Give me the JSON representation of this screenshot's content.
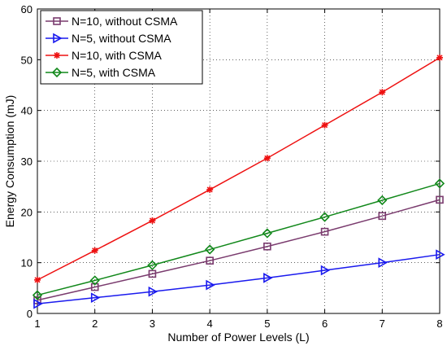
{
  "chart_data": {
    "type": "line",
    "xlabel": "Number of Power Levels (L)",
    "ylabel": "Energy Consumption (mJ)",
    "xlim": [
      1,
      8
    ],
    "ylim": [
      0,
      60
    ],
    "x": [
      1,
      2,
      3,
      4,
      5,
      6,
      7,
      8
    ],
    "xticks": [
      "1",
      "2",
      "3",
      "4",
      "5",
      "6",
      "7",
      "8"
    ],
    "yticks": [
      "0",
      "10",
      "20",
      "30",
      "40",
      "50",
      "60"
    ],
    "grid": true,
    "legend_position": "top-left",
    "series": [
      {
        "name": "N=10, without CSMA",
        "color": "#7a3b6e",
        "marker": "square",
        "values": [
          2.6,
          5.2,
          7.8,
          10.4,
          13.2,
          16.1,
          19.2,
          22.4
        ]
      },
      {
        "name": "N=5, without CSMA",
        "color": "#1a1aee",
        "marker": "triangle-right",
        "values": [
          1.9,
          3.1,
          4.3,
          5.6,
          7.0,
          8.5,
          10.0,
          11.6
        ]
      },
      {
        "name": "N=10, with CSMA",
        "color": "#ee1111",
        "marker": "star",
        "values": [
          6.6,
          12.4,
          18.3,
          24.4,
          30.6,
          37.1,
          43.6,
          50.4
        ]
      },
      {
        "name": "N=5, with CSMA",
        "color": "#11881a",
        "marker": "diamond",
        "values": [
          3.6,
          6.5,
          9.5,
          12.6,
          15.8,
          19.0,
          22.3,
          25.6
        ]
      }
    ]
  }
}
